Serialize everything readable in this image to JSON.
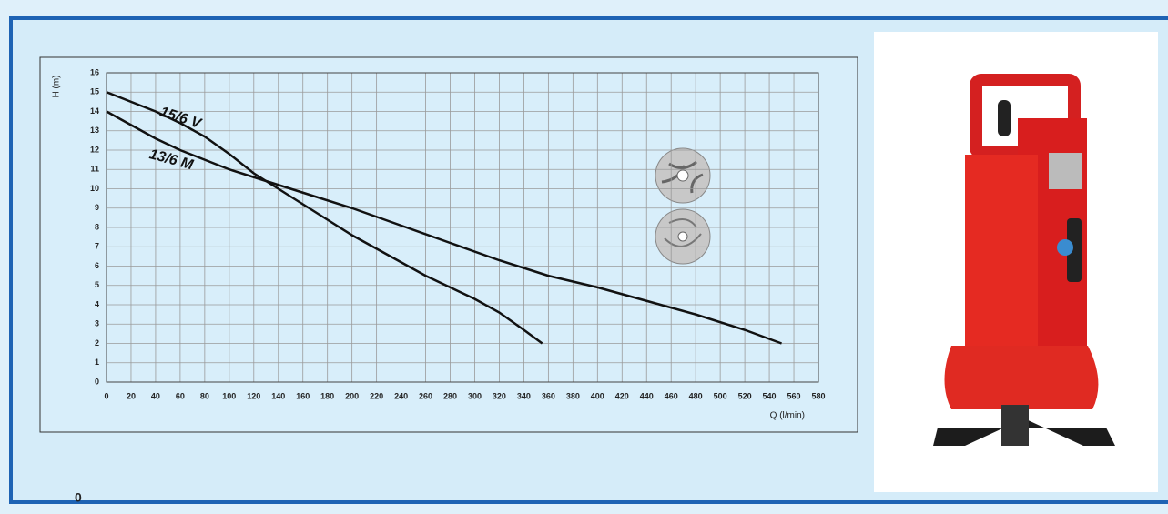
{
  "chart_data": {
    "type": "line",
    "x_label": "Q (l/min)",
    "y_label": "H (m)",
    "series": [
      {
        "name": "15/6 V",
        "color": "#111111",
        "x": [
          0,
          20,
          40,
          60,
          80,
          100,
          120,
          140,
          160,
          180,
          200,
          220,
          240,
          260,
          280,
          300,
          320,
          340,
          355
        ],
        "values": [
          15,
          14.5,
          14,
          13.4,
          12.7,
          11.8,
          10.8,
          10.0,
          9.2,
          8.4,
          7.6,
          6.9,
          6.2,
          5.5,
          4.9,
          4.3,
          3.6,
          2.7,
          2.0
        ]
      },
      {
        "name": "13/6 M",
        "color": "#111111",
        "x": [
          0,
          20,
          40,
          60,
          80,
          100,
          120,
          160,
          200,
          240,
          280,
          320,
          360,
          400,
          440,
          480,
          520,
          550
        ],
        "values": [
          14,
          13.3,
          12.6,
          12.0,
          11.5,
          11.0,
          10.6,
          9.8,
          9.0,
          8.1,
          7.2,
          6.3,
          5.5,
          4.9,
          4.2,
          3.5,
          2.7,
          2.0
        ]
      }
    ],
    "xlim": [
      0,
      580
    ],
    "xticks": [
      0,
      20,
      40,
      60,
      80,
      100,
      120,
      140,
      160,
      180,
      200,
      220,
      240,
      260,
      280,
      300,
      320,
      340,
      360,
      380,
      400,
      420,
      440,
      460,
      480,
      500,
      520,
      540,
      560,
      580
    ],
    "ylim": [
      0,
      16
    ],
    "yticks": [
      0,
      1,
      2,
      3,
      4,
      5,
      6,
      7,
      8,
      9,
      10,
      11,
      12,
      13,
      14,
      15,
      16
    ],
    "grid": true
  },
  "footer_text": "0"
}
